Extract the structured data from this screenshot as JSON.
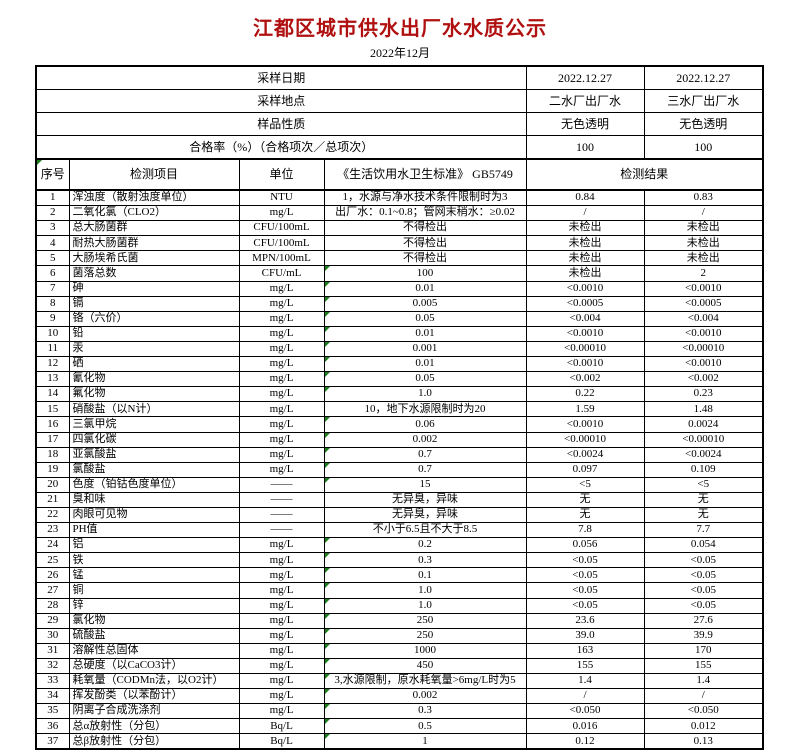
{
  "page": {
    "title": "江都区城市供水出厂水水质公示",
    "subtitle": "2022年12月"
  },
  "colors": {
    "title_red": "#b01010",
    "marker_green": "#1e7e1e",
    "border": "#000000",
    "background": "#ffffff"
  },
  "info_rows": [
    {
      "label": "采样日期",
      "v1": "2022.12.27",
      "v2": "2022.12.27"
    },
    {
      "label": "采样地点",
      "v1": "二水厂出厂水",
      "v2": "三水厂出厂水"
    },
    {
      "label": "样品性质",
      "v1": "无色透明",
      "v2": "无色透明"
    },
    {
      "label": "合格率（%）（合格项次／总项次）",
      "v1": "100",
      "v2": "100"
    }
  ],
  "columns": {
    "no": "序号",
    "item": "检测项目",
    "unit": "单位",
    "standard": "《生活饮用水卫生标准》 GB5749",
    "result": "检测结果"
  },
  "rows": [
    {
      "no": "1",
      "item": "浑浊度（散射浊度单位）",
      "unit": "NTU",
      "standard": "1，水源与净水技术条件限制时为3",
      "r1": "0.84",
      "r2": "0.83",
      "marker": false
    },
    {
      "no": "2",
      "item": "二氧化氯（CLO2）",
      "unit": "mg/L",
      "standard": "出厂水：0.1~0.8；管网末稍水：≥0.02",
      "r1": "/",
      "r2": "/",
      "marker": false
    },
    {
      "no": "3",
      "item": "总大肠菌群",
      "unit": "CFU/100mL",
      "standard": "不得检出",
      "r1": "未检出",
      "r2": "未检出",
      "marker": false
    },
    {
      "no": "4",
      "item": "耐热大肠菌群",
      "unit": "CFU/100mL",
      "standard": "不得检出",
      "r1": "未检出",
      "r2": "未检出",
      "marker": false
    },
    {
      "no": "5",
      "item": "大肠埃希氏菌",
      "unit": "MPN/100mL",
      "standard": "不得检出",
      "r1": "未检出",
      "r2": "未检出",
      "marker": false
    },
    {
      "no": "6",
      "item": "菌落总数",
      "unit": "CFU/mL",
      "standard": "100",
      "r1": "未检出",
      "r2": "2",
      "marker": true
    },
    {
      "no": "7",
      "item": "砷",
      "unit": "mg/L",
      "standard": "0.01",
      "r1": "<0.0010",
      "r2": "<0.0010",
      "marker": true
    },
    {
      "no": "8",
      "item": "镉",
      "unit": "mg/L",
      "standard": "0.005",
      "r1": "<0.0005",
      "r2": "<0.0005",
      "marker": true
    },
    {
      "no": "9",
      "item": "铬（六价）",
      "unit": "mg/L",
      "standard": "0.05",
      "r1": "<0.004",
      "r2": "<0.004",
      "marker": true
    },
    {
      "no": "10",
      "item": "铅",
      "unit": "mg/L",
      "standard": "0.01",
      "r1": "<0.0010",
      "r2": "<0.0010",
      "marker": true
    },
    {
      "no": "11",
      "item": "汞",
      "unit": "mg/L",
      "standard": "0.001",
      "r1": "<0.00010",
      "r2": "<0.00010",
      "marker": true
    },
    {
      "no": "12",
      "item": "硒",
      "unit": "mg/L",
      "standard": "0.01",
      "r1": "<0.0010",
      "r2": "<0.0010",
      "marker": true
    },
    {
      "no": "13",
      "item": "氰化物",
      "unit": "mg/L",
      "standard": "0.05",
      "r1": "<0.002",
      "r2": "<0.002",
      "marker": true
    },
    {
      "no": "14",
      "item": "氟化物",
      "unit": "mg/L",
      "standard": "1.0",
      "r1": "0.22",
      "r2": "0.23",
      "marker": true
    },
    {
      "no": "15",
      "item": "硝酸盐（以N计）",
      "unit": "mg/L",
      "standard": "10，地下水源限制时为20",
      "r1": "1.59",
      "r2": "1.48",
      "marker": false
    },
    {
      "no": "16",
      "item": "三氯甲烷",
      "unit": "mg/L",
      "standard": "0.06",
      "r1": "<0.0010",
      "r2": "0.0024",
      "marker": true
    },
    {
      "no": "17",
      "item": "四氯化碳",
      "unit": "mg/L",
      "standard": "0.002",
      "r1": "<0.00010",
      "r2": "<0.00010",
      "marker": true
    },
    {
      "no": "18",
      "item": "亚氯酸盐",
      "unit": "mg/L",
      "standard": "0.7",
      "r1": "<0.0024",
      "r2": "<0.0024",
      "marker": true
    },
    {
      "no": "19",
      "item": "氯酸盐",
      "unit": "mg/L",
      "standard": "0.7",
      "r1": "0.097",
      "r2": "0.109",
      "marker": true
    },
    {
      "no": "20",
      "item": "色度（铂钴色度单位）",
      "unit": "——",
      "standard": "15",
      "r1": "<5",
      "r2": "<5",
      "marker": true
    },
    {
      "no": "21",
      "item": "臭和味",
      "unit": "——",
      "standard": "无异臭，异味",
      "r1": "无",
      "r2": "无",
      "marker": false
    },
    {
      "no": "22",
      "item": "肉眼可见物",
      "unit": "——",
      "standard": "无异臭，异味",
      "r1": "无",
      "r2": "无",
      "marker": false
    },
    {
      "no": "23",
      "item": "PH值",
      "unit": "——",
      "standard": "不小于6.5且不大于8.5",
      "r1": "7.8",
      "r2": "7.7",
      "marker": false
    },
    {
      "no": "24",
      "item": "铝",
      "unit": "mg/L",
      "standard": "0.2",
      "r1": "0.056",
      "r2": "0.054",
      "marker": true
    },
    {
      "no": "25",
      "item": "铁",
      "unit": "mg/L",
      "standard": "0.3",
      "r1": "<0.05",
      "r2": "<0.05",
      "marker": true
    },
    {
      "no": "26",
      "item": "锰",
      "unit": "mg/L",
      "standard": "0.1",
      "r1": "<0.05",
      "r2": "<0.05",
      "marker": true
    },
    {
      "no": "27",
      "item": "铜",
      "unit": "mg/L",
      "standard": "1.0",
      "r1": "<0.05",
      "r2": "<0.05",
      "marker": true
    },
    {
      "no": "28",
      "item": "锌",
      "unit": "mg/L",
      "standard": "1.0",
      "r1": "<0.05",
      "r2": "<0.05",
      "marker": true
    },
    {
      "no": "29",
      "item": "氯化物",
      "unit": "mg/L",
      "standard": "250",
      "r1": "23.6",
      "r2": "27.6",
      "marker": true
    },
    {
      "no": "30",
      "item": "硫酸盐",
      "unit": "mg/L",
      "standard": "250",
      "r1": "39.0",
      "r2": "39.9",
      "marker": true
    },
    {
      "no": "31",
      "item": "溶解性总固体",
      "unit": "mg/L",
      "standard": "1000",
      "r1": "163",
      "r2": "170",
      "marker": true
    },
    {
      "no": "32",
      "item": "总硬度（以CaCO3计）",
      "unit": "mg/L",
      "standard": "450",
      "r1": "155",
      "r2": "155",
      "marker": true
    },
    {
      "no": "33",
      "item": "耗氧量（CODMn法，以O2计）",
      "unit": "mg/L",
      "standard": "3,水源限制，原水耗氧量>6mg/L时为5",
      "r1": "1.4",
      "r2": "1.4",
      "marker": true
    },
    {
      "no": "34",
      "item": "挥发酚类（以苯酚计）",
      "unit": "mg/L",
      "standard": "0.002",
      "r1": "/",
      "r2": "/",
      "marker": true
    },
    {
      "no": "35",
      "item": "阴离子合成洗涤剂",
      "unit": "mg/L",
      "standard": "0.3",
      "r1": "<0.050",
      "r2": "<0.050",
      "marker": true
    },
    {
      "no": "36",
      "item": "总α放射性（分包）",
      "unit": "Bq/L",
      "standard": "0.5",
      "r1": "0.016",
      "r2": "0.012",
      "marker": true
    },
    {
      "no": "37",
      "item": "总β放射性（分包）",
      "unit": "Bq/L",
      "standard": "1",
      "r1": "0.12",
      "r2": "0.13",
      "marker": true
    }
  ]
}
